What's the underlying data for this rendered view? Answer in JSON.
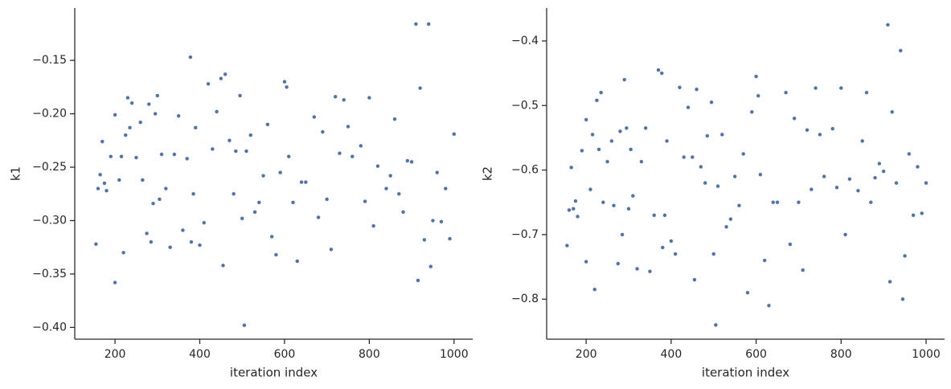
{
  "chart_data": [
    {
      "type": "scatter",
      "x_label": "iteration index",
      "y_label": "k1",
      "color": "#4c72b0",
      "xlim": [
        105,
        1044
      ],
      "ylim": [
        -0.411,
        -0.101
      ],
      "xticks": [
        200,
        400,
        600,
        800,
        1000
      ],
      "yticks": [
        {
          "value": -0.4,
          "label": "−0.40"
        },
        {
          "value": -0.35,
          "label": "−0.35"
        },
        {
          "value": -0.3,
          "label": "−0.30"
        },
        {
          "value": -0.25,
          "label": "−0.25"
        },
        {
          "value": -0.2,
          "label": "−0.20"
        },
        {
          "value": -0.15,
          "label": "−0.15"
        }
      ],
      "x": [
        155,
        160,
        165,
        170,
        175,
        180,
        190,
        200,
        200,
        210,
        215,
        220,
        225,
        230,
        235,
        240,
        250,
        260,
        265,
        275,
        280,
        285,
        290,
        295,
        300,
        305,
        310,
        320,
        330,
        340,
        350,
        360,
        370,
        378,
        380,
        385,
        390,
        400,
        410,
        420,
        430,
        440,
        450,
        455,
        460,
        470,
        480,
        485,
        495,
        500,
        505,
        510,
        520,
        530,
        540,
        550,
        560,
        570,
        580,
        590,
        600,
        605,
        610,
        620,
        630,
        640,
        650,
        670,
        680,
        690,
        700,
        710,
        720,
        730,
        740,
        750,
        760,
        780,
        790,
        800,
        810,
        820,
        840,
        850,
        860,
        870,
        880,
        890,
        900,
        910,
        915,
        920,
        930,
        940,
        945,
        950,
        960,
        970,
        980,
        990,
        1000
      ],
      "y": [
        -0.322,
        -0.27,
        -0.257,
        -0.226,
        -0.265,
        -0.272,
        -0.24,
        -0.358,
        -0.201,
        -0.262,
        -0.24,
        -0.33,
        -0.22,
        -0.185,
        -0.213,
        -0.19,
        -0.241,
        -0.208,
        -0.262,
        -0.312,
        -0.191,
        -0.32,
        -0.284,
        -0.2,
        -0.183,
        -0.28,
        -0.238,
        -0.27,
        -0.325,
        -0.238,
        -0.202,
        -0.309,
        -0.242,
        -0.147,
        -0.32,
        -0.275,
        -0.213,
        -0.323,
        -0.302,
        -0.172,
        -0.233,
        -0.198,
        -0.167,
        -0.342,
        -0.163,
        -0.225,
        -0.275,
        -0.235,
        -0.183,
        -0.298,
        -0.398,
        -0.235,
        -0.22,
        -0.292,
        -0.283,
        -0.258,
        -0.21,
        -0.315,
        -0.332,
        -0.255,
        -0.17,
        -0.175,
        -0.24,
        -0.283,
        -0.338,
        -0.264,
        -0.264,
        -0.203,
        -0.297,
        -0.217,
        -0.28,
        -0.327,
        -0.184,
        -0.237,
        -0.187,
        -0.212,
        -0.24,
        -0.23,
        -0.282,
        -0.185,
        -0.305,
        -0.249,
        -0.27,
        -0.258,
        -0.205,
        -0.275,
        -0.292,
        -0.244,
        -0.245,
        -0.116,
        -0.356,
        -0.176,
        -0.318,
        -0.116,
        -0.343,
        -0.3,
        -0.255,
        -0.301,
        -0.27,
        -0.317,
        -0.219
      ]
    },
    {
      "type": "scatter",
      "x_label": "iteration index",
      "y_label": "k2",
      "color": "#4c72b0",
      "xlim": [
        107,
        1043.5
      ],
      "ylim": [
        -0.862,
        -0.349
      ],
      "xticks": [
        200,
        400,
        600,
        800,
        1000
      ],
      "yticks": [
        {
          "value": -0.8,
          "label": "−0.8"
        },
        {
          "value": -0.7,
          "label": "−0.7"
        },
        {
          "value": -0.6,
          "label": "−0.6"
        },
        {
          "value": -0.5,
          "label": "−0.5"
        },
        {
          "value": -0.4,
          "label": "−0.4"
        }
      ],
      "x": [
        155,
        160,
        165,
        170,
        175,
        180,
        190,
        200,
        200,
        210,
        215,
        220,
        225,
        230,
        235,
        240,
        250,
        260,
        265,
        275,
        280,
        285,
        290,
        295,
        300,
        305,
        310,
        320,
        330,
        340,
        350,
        360,
        370,
        378,
        380,
        385,
        390,
        400,
        410,
        420,
        430,
        440,
        450,
        455,
        460,
        470,
        480,
        485,
        495,
        500,
        505,
        510,
        520,
        530,
        540,
        550,
        560,
        570,
        580,
        590,
        600,
        605,
        610,
        620,
        630,
        640,
        650,
        670,
        680,
        690,
        700,
        710,
        720,
        730,
        740,
        750,
        760,
        780,
        790,
        800,
        810,
        820,
        840,
        850,
        860,
        870,
        880,
        890,
        900,
        910,
        915,
        920,
        930,
        940,
        945,
        950,
        960,
        970,
        980,
        990,
        1000
      ],
      "y": [
        -0.717,
        -0.662,
        -0.596,
        -0.66,
        -0.648,
        -0.672,
        -0.57,
        -0.742,
        -0.522,
        -0.63,
        -0.545,
        -0.785,
        -0.492,
        -0.568,
        -0.48,
        -0.65,
        -0.587,
        -0.555,
        -0.655,
        -0.745,
        -0.54,
        -0.7,
        -0.46,
        -0.535,
        -0.66,
        -0.568,
        -0.64,
        -0.753,
        -0.587,
        -0.535,
        -0.757,
        -0.67,
        -0.445,
        -0.45,
        -0.72,
        -0.67,
        -0.555,
        -0.71,
        -0.73,
        -0.472,
        -0.58,
        -0.503,
        -0.58,
        -0.77,
        -0.475,
        -0.595,
        -0.62,
        -0.547,
        -0.495,
        -0.73,
        -0.84,
        -0.625,
        -0.545,
        -0.688,
        -0.676,
        -0.61,
        -0.655,
        -0.575,
        -0.79,
        -0.51,
        -0.455,
        -0.485,
        -0.607,
        -0.74,
        -0.81,
        -0.65,
        -0.65,
        -0.48,
        -0.715,
        -0.52,
        -0.65,
        -0.755,
        -0.538,
        -0.63,
        -0.473,
        -0.545,
        -0.61,
        -0.536,
        -0.627,
        -0.473,
        -0.7,
        -0.614,
        -0.632,
        -0.555,
        -0.48,
        -0.65,
        -0.612,
        -0.59,
        -0.602,
        -0.375,
        -0.773,
        -0.51,
        -0.62,
        -0.415,
        -0.8,
        -0.733,
        -0.575,
        -0.67,
        -0.595,
        -0.667,
        -0.62
      ]
    }
  ]
}
